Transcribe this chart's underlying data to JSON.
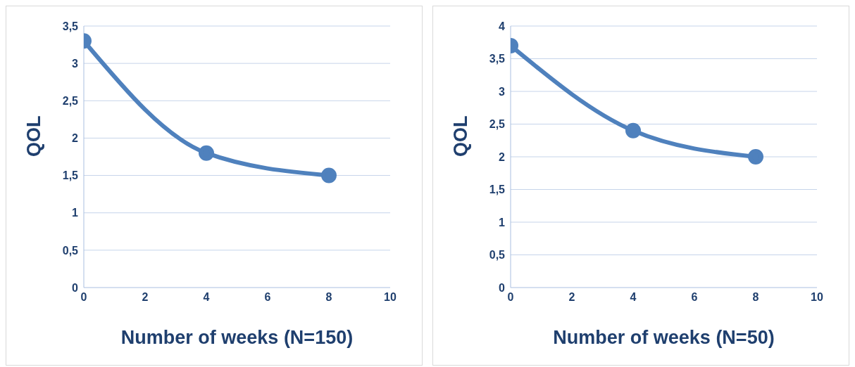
{
  "chart_data": [
    {
      "type": "line",
      "x": [
        0,
        4,
        8
      ],
      "series": [
        {
          "color": "#4f81bd",
          "values": [
            3.3,
            1.8,
            1.5
          ]
        }
      ],
      "xlabel": "Number of weeks (N=150)",
      "ylabel": "QOL",
      "xlim": [
        0,
        10
      ],
      "xticks": [
        0,
        2,
        4,
        6,
        8,
        10
      ],
      "ylim": [
        0,
        3.5
      ],
      "yticks": [
        0,
        {
          "value": 0.5,
          "label": "0,5"
        },
        1,
        {
          "value": 1.5,
          "label": "1,5"
        },
        2,
        {
          "value": 2.5,
          "label": "2,5"
        },
        3,
        {
          "value": 3.5,
          "label": "3,5"
        }
      ],
      "grid": "y",
      "marker": "circle",
      "line_style": "solid",
      "legend": false
    },
    {
      "type": "line",
      "x": [
        0,
        4,
        8
      ],
      "series": [
        {
          "color": "#4f81bd",
          "values": [
            3.7,
            2.4,
            2.0
          ]
        }
      ],
      "xlabel": "Number of weeks (N=50)",
      "ylabel": "QOL",
      "xlim": [
        0,
        10
      ],
      "xticks": [
        0,
        2,
        4,
        6,
        8,
        10
      ],
      "ylim": [
        0,
        4
      ],
      "yticks": [
        0,
        {
          "value": 0.5,
          "label": "0,5"
        },
        1,
        {
          "value": 1.5,
          "label": "1,5"
        },
        2,
        {
          "value": 2.5,
          "label": "2,5"
        },
        3,
        {
          "value": 3.5,
          "label": "3,5"
        },
        4
      ],
      "grid": "y",
      "marker": "circle",
      "line_style": "solid",
      "legend": false
    }
  ]
}
